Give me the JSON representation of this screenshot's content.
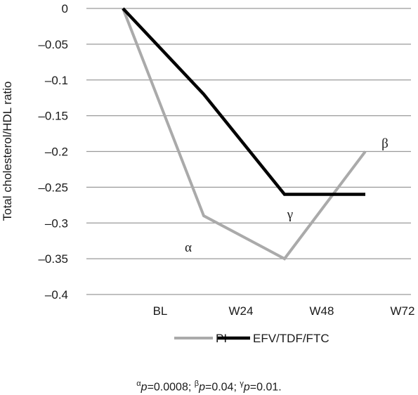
{
  "chart_data": {
    "type": "line",
    "categories": [
      "BL",
      "W24",
      "W48",
      "W72"
    ],
    "series": [
      {
        "name": "PI",
        "values": [
          0,
          -0.29,
          -0.35,
          -0.2
        ],
        "color": "#aaaaaa"
      },
      {
        "name": "EFV/TDF/FTC",
        "values": [
          0,
          -0.12,
          -0.26,
          -0.26
        ],
        "color": "#000000"
      }
    ],
    "ylabel": "Total cholesterol/HDL ratio",
    "ylim": [
      -0.4,
      0
    ],
    "yticks": [
      0,
      -0.05,
      -0.1,
      -0.15,
      -0.2,
      -0.25,
      -0.3,
      -0.35,
      -0.4
    ],
    "ytick_labels": [
      "0",
      "–0.05",
      "–0.1",
      "–0.15",
      "–0.2",
      "–0.25",
      "–0.3",
      "–0.35",
      "–0.4"
    ],
    "grid": true,
    "legend": "bottom",
    "annotations": [
      {
        "text": "α",
        "series": 0,
        "category": 1
      },
      {
        "text": "γ",
        "series": 0,
        "category": 2
      },
      {
        "text": "β",
        "series": 0,
        "category": 3
      }
    ]
  },
  "footnote": {
    "a_sym": "α",
    "a_p": "p",
    "a_val": "=0.0008; ",
    "b_sym": "β",
    "b_p": "p",
    "b_val": "=0.04; ",
    "g_sym": "γ",
    "g_p": "p",
    "g_val": "=0.01."
  }
}
